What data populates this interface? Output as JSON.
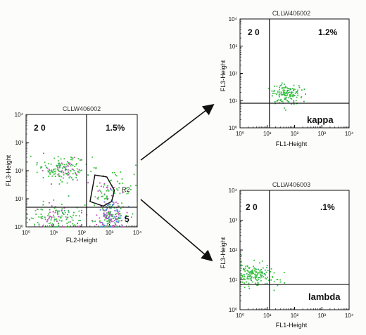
{
  "chart_data": [
    {
      "id": "main",
      "type": "scatter",
      "title": "CLLW406002",
      "xlabel": "FL2-Height",
      "ylabel": "FL3-Height",
      "xscale": "log",
      "yscale": "log",
      "xlim": [
        1,
        10000
      ],
      "ylim": [
        1,
        10000
      ],
      "xticks": [
        "10⁰",
        "10¹",
        "10²",
        "10³",
        "10⁴"
      ],
      "yticks": [
        "10⁰",
        "10¹",
        "10²",
        "10³",
        "10⁴"
      ],
      "quadrant_divider": {
        "x": 150,
        "y": 5
      },
      "quadrant_labels": {
        "top_left": "2 0",
        "top_right": "1.5%",
        "bottom_right": "5"
      },
      "gate": {
        "name": "R2",
        "polygon": [
          [
            200,
            8
          ],
          [
            300,
            70
          ],
          [
            800,
            60
          ],
          [
            1500,
            20
          ],
          [
            1200,
            8
          ],
          [
            600,
            5.5
          ]
        ]
      },
      "populations": [
        {
          "x_center": 20,
          "y_center": 120,
          "x_spread": 0.45,
          "y_spread": 0.22,
          "n": 160,
          "colors": [
            "#3cc43c",
            "#3cc43c",
            "#2fae5a",
            "#c04bb5"
          ]
        },
        {
          "x_center": 10,
          "y_center": 2.2,
          "x_spread": 0.5,
          "y_spread": 0.28,
          "n": 140,
          "colors": [
            "#3cc43c",
            "#3cc43c",
            "#c04bb5",
            "#2fae5a"
          ]
        },
        {
          "x_center": 900,
          "y_center": 2.5,
          "x_spread": 0.28,
          "y_spread": 0.3,
          "n": 200,
          "colors": [
            "#3cc43c",
            "#c04bb5",
            "#c04bb5",
            "#4078e0",
            "#2fae5a"
          ]
        },
        {
          "x_center": 700,
          "y_center": 20,
          "x_spread": 0.22,
          "y_spread": 0.22,
          "n": 35,
          "colors": [
            "#3cc43c",
            "#c04bb5"
          ]
        },
        {
          "x_center": 2000,
          "y_center": 30,
          "x_spread": 0.35,
          "y_spread": 0.4,
          "n": 40,
          "colors": [
            "#3cc43c"
          ]
        }
      ]
    },
    {
      "id": "kappa",
      "type": "scatter",
      "title": "CLLW406002",
      "xlabel": "FL1-Height",
      "ylabel": "FL3-Height",
      "xscale": "log",
      "yscale": "log",
      "xlim": [
        1,
        10000
      ],
      "ylim": [
        1,
        10000
      ],
      "xticks": [
        "10⁰",
        "10¹",
        "10²",
        "10³",
        "10⁴"
      ],
      "yticks": [
        "10⁰",
        "10¹",
        "10²",
        "10³",
        "10⁴"
      ],
      "quadrant_divider": {
        "x": 12,
        "y": 8
      },
      "quadrant_labels": {
        "top_left": "2 0",
        "top_right": "1.2%",
        "bottom_right": "kappa"
      },
      "populations": [
        {
          "x_center": 50,
          "y_center": 18,
          "x_spread": 0.3,
          "y_spread": 0.18,
          "n": 140,
          "colors": [
            "#3cc43c",
            "#3cc43c",
            "#2fae5a"
          ]
        }
      ]
    },
    {
      "id": "lambda",
      "type": "scatter",
      "title": "CLLW406003",
      "xlabel": "FL1-Height",
      "ylabel": "FL3-Height",
      "xscale": "log",
      "yscale": "log",
      "xlim": [
        1,
        10000
      ],
      "ylim": [
        1,
        10000
      ],
      "xticks": [
        "10⁰",
        "10¹",
        "10²",
        "10³",
        "10⁴"
      ],
      "yticks": [
        "10⁰",
        "10¹",
        "10²",
        "10³",
        "10⁴"
      ],
      "quadrant_divider": {
        "x": 12,
        "y": 7
      },
      "quadrant_labels": {
        "top_left": "2 0",
        "top_right": ".1%",
        "bottom_right": "lambda"
      },
      "populations": [
        {
          "x_center": 3,
          "y_center": 16,
          "x_spread": 0.3,
          "y_spread": 0.18,
          "n": 150,
          "colors": [
            "#3cc43c",
            "#3cc43c",
            "#2fae5a"
          ]
        },
        {
          "x_center": 20,
          "y_center": 10,
          "x_spread": 0.3,
          "y_spread": 0.15,
          "n": 15,
          "colors": [
            "#3cc43c"
          ]
        }
      ]
    }
  ],
  "colors": {
    "axis": "#111111",
    "arrow": "#111111",
    "gate": "#111111"
  }
}
